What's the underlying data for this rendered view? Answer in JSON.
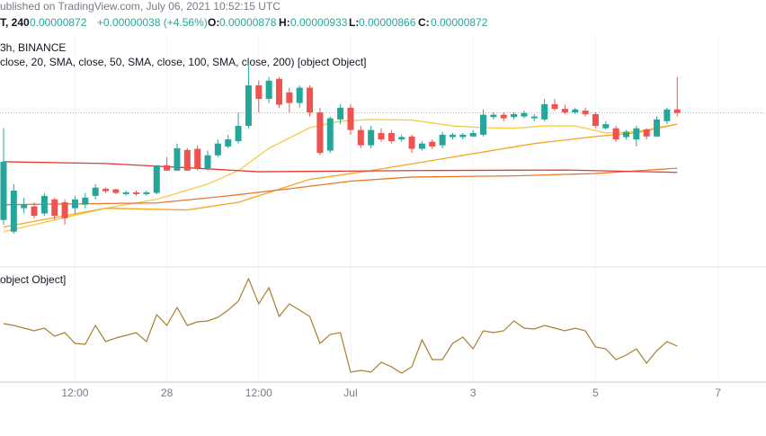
{
  "header": {
    "published": "ublished on TradingView.com, July 06, 2021 10:52:15 UTC",
    "symbol": "T, 240",
    "price": "0.00000872",
    "change": "+0.00000038 (+4.56%)",
    "ohlc": [
      {
        "label": "O:",
        "value": "0.00000878"
      },
      {
        "label": "H:",
        "value": "0.00000933"
      },
      {
        "label": "L:",
        "value": "0.00000866"
      },
      {
        "label": "C:",
        "value": "0.00000872"
      }
    ],
    "exchange": "3h, BINANCE"
  },
  "chart_data": [
    {
      "type": "candlestick",
      "indicator_label": "close, 20, SMA, close, 50, SMA, close, 100, SMA, close, 200) [object Object]",
      "up_color": "#26a69a",
      "down_color": "#ef5350",
      "x": [
        0,
        1,
        2,
        3,
        4,
        5,
        6,
        7,
        8,
        9,
        10,
        11,
        12,
        13,
        14,
        15,
        16,
        17,
        18,
        19,
        20,
        21,
        22,
        23,
        24,
        25,
        26,
        27,
        28,
        29,
        30,
        31,
        32,
        33,
        34,
        35,
        36,
        37,
        38,
        39,
        40,
        41,
        42,
        43,
        44,
        45,
        46,
        47,
        48,
        49,
        50,
        51,
        52,
        53,
        54,
        55,
        56,
        57,
        58,
        59,
        60,
        61,
        62,
        63,
        64,
        65,
        66
      ],
      "open": [
        6.9e-06,
        6.7e-06,
        7.1e-06,
        7.13e-06,
        7.01e-06,
        7.25e-06,
        7.2e-06,
        7.1e-06,
        7.16e-06,
        7.31e-06,
        7.43e-06,
        7.42e-06,
        7.34e-06,
        7.37e-06,
        7.34e-06,
        7.36e-06,
        7.83e-06,
        7.74e-06,
        8.09e-06,
        8.11e-06,
        7.78e-06,
        8e-06,
        8.15e-06,
        8.24e-06,
        8.5e-06,
        9.19e-06,
        8.96e-06,
        9.3e-06,
        9.07e-06,
        8.89e-06,
        9.15e-06,
        8.73e-06,
        8.08e-06,
        8.61e-06,
        8.81e-06,
        8.43e-06,
        8.17e-06,
        8.38e-06,
        8.38e-06,
        8.27e-06,
        8.32e-06,
        8.11e-06,
        8.23e-06,
        8.17e-06,
        8.31e-06,
        8.31e-06,
        8.32e-06,
        8.35e-06,
        8.65e-06,
        8.69e-06,
        8.65e-06,
        8.66e-06,
        8.63e-06,
        8.61e-06,
        8.87e-06,
        8.79e-06,
        8.73e-06,
        8.76e-06,
        8.7e-06,
        8.46e-06,
        8.46e-06,
        8.31e-06,
        8.27e-06,
        8.44e-06,
        8.32e-06,
        8.58e-06,
        8.78e-06
      ],
      "high": [
        8.46e-06,
        7.51e-06,
        7.28e-06,
        7.2e-06,
        7.36e-06,
        7.28e-06,
        7.25e-06,
        7.31e-06,
        7.36e-06,
        7.51e-06,
        7.45e-06,
        7.43e-06,
        7.4e-06,
        7.4e-06,
        7.4e-06,
        7.83e-06,
        7.97e-06,
        8.2e-06,
        8.12e-06,
        8.17e-06,
        8.08e-06,
        8.27e-06,
        8.35e-06,
        8.73e-06,
        9.57e-06,
        9.27e-06,
        9.33e-06,
        9.33e-06,
        9.15e-06,
        9.19e-06,
        9.19e-06,
        8.81e-06,
        8.66e-06,
        8.87e-06,
        8.87e-06,
        8.5e-06,
        8.5e-06,
        8.46e-06,
        8.43e-06,
        8.35e-06,
        8.35e-06,
        8.24e-06,
        8.27e-06,
        8.4e-06,
        8.38e-06,
        8.38e-06,
        8.43e-06,
        8.78e-06,
        8.73e-06,
        8.73e-06,
        8.73e-06,
        8.76e-06,
        8.7e-06,
        8.96e-06,
        8.96e-06,
        8.86e-06,
        8.81e-06,
        8.81e-06,
        8.73e-06,
        8.58e-06,
        8.5e-06,
        8.43e-06,
        8.5e-06,
        8.46e-06,
        8.66e-06,
        8.81e-06,
        9.33e-06
      ],
      "low": [
        6.82e-06,
        6.67e-06,
        7.01e-06,
        6.93e-06,
        6.97e-06,
        6.9e-06,
        6.82e-06,
        7.01e-06,
        7.1e-06,
        7.25e-06,
        7.36e-06,
        7.34e-06,
        7.31e-06,
        7.31e-06,
        7.31e-06,
        7.34e-06,
        7.74e-06,
        7.74e-06,
        7.74e-06,
        7.74e-06,
        7.74e-06,
        7.97e-06,
        8.12e-06,
        8.2e-06,
        8.46e-06,
        8.73e-06,
        8.89e-06,
        8.81e-06,
        8.73e-06,
        8.81e-06,
        8.66e-06,
        8e-06,
        8.04e-06,
        8.53e-06,
        8.35e-06,
        8.12e-06,
        8.12e-06,
        8.23e-06,
        8.2e-06,
        8.23e-06,
        8.04e-06,
        8.08e-06,
        8.11e-06,
        8.12e-06,
        8.27e-06,
        8.27e-06,
        8.31e-06,
        8.32e-06,
        8.61e-06,
        8.58e-06,
        8.61e-06,
        8.63e-06,
        8.58e-06,
        8.58e-06,
        8.76e-06,
        8.7e-06,
        8.7e-06,
        8.66e-06,
        8.46e-06,
        8.43e-06,
        8.23e-06,
        8.27e-06,
        8.15e-06,
        8.27e-06,
        8.31e-06,
        8.53e-06,
        8.66e-06
      ],
      "close": [
        7.89e-06,
        7.4e-06,
        7.16e-06,
        6.97e-06,
        7.31e-06,
        6.97e-06,
        6.93e-06,
        7.25e-06,
        7.28e-06,
        7.45e-06,
        7.39e-06,
        7.36e-06,
        7.37e-06,
        7.34e-06,
        7.37e-06,
        7.83e-06,
        7.74e-06,
        8.12e-06,
        7.74e-06,
        7.78e-06,
        8e-06,
        8.2e-06,
        8.27e-06,
        8.5e-06,
        9.19e-06,
        8.96e-06,
        9.27e-06,
        8.86e-06,
        8.89e-06,
        9.15e-06,
        8.73e-06,
        8.04e-06,
        8.63e-06,
        8.81e-06,
        8.43e-06,
        8.17e-06,
        8.43e-06,
        8.27e-06,
        8.24e-06,
        8.31e-06,
        8.11e-06,
        8.2e-06,
        8.15e-06,
        8.35e-06,
        8.35e-06,
        8.35e-06,
        8.38e-06,
        8.69e-06,
        8.69e-06,
        8.63e-06,
        8.7e-06,
        8.72e-06,
        8.66e-06,
        8.87e-06,
        8.79e-06,
        8.73e-06,
        8.78e-06,
        8.7e-06,
        8.5e-06,
        8.53e-06,
        8.27e-06,
        8.4e-06,
        8.46e-06,
        8.32e-06,
        8.61e-06,
        8.78e-06,
        8.72e-06
      ],
      "series": [
        {
          "color": "#f7c948",
          "x": [
            0,
            5,
            10,
            15,
            20,
            23,
            26,
            30,
            33,
            36,
            40,
            44,
            47,
            50,
            53,
            56,
            59,
            62,
            64,
            66
          ],
          "values": [
            6.7e-06,
            6.9e-06,
            7.1e-06,
            7.25e-06,
            7.51e-06,
            7.74e-06,
            8.12e-06,
            8.47e-06,
            8.58e-06,
            8.61e-06,
            8.6e-06,
            8.5e-06,
            8.47e-06,
            8.46e-06,
            8.5e-06,
            8.5e-06,
            8.38e-06,
            8.4e-06,
            8.47e-06,
            8.53e-06
          ]
        },
        {
          "color": "#f5a623",
          "x": [
            0,
            10,
            18,
            23,
            30,
            36,
            44,
            52,
            58,
            62,
            66
          ],
          "values": [
            6.78e-06,
            7.1e-06,
            7.07e-06,
            7.2e-06,
            7.59e-06,
            7.74e-06,
            7.97e-06,
            8.2e-06,
            8.32e-06,
            8.38e-06,
            8.53e-06
          ]
        },
        {
          "color": "#e8772e",
          "x": [
            0,
            15,
            22,
            28,
            34,
            40,
            50,
            58,
            66
          ],
          "values": [
            7.16e-06,
            7.19e-06,
            7.31e-06,
            7.43e-06,
            7.56e-06,
            7.63e-06,
            7.65e-06,
            7.69e-06,
            7.78e-06
          ]
        },
        {
          "color": "#e53935",
          "x": [
            0,
            10,
            20,
            25,
            40,
            55,
            66
          ],
          "values": [
            7.89e-06,
            7.86e-06,
            7.77e-06,
            7.72e-06,
            7.74e-06,
            7.75e-06,
            7.71e-06
          ]
        }
      ],
      "xlim": [
        -0.35,
        74.7
      ],
      "ylim": [
        6.1e-06,
        1.003e-05
      ],
      "xticks": [
        {
          "value": 7,
          "label": "12:00"
        },
        {
          "value": 16,
          "label": "28"
        },
        {
          "value": 25,
          "label": "12:00"
        },
        {
          "value": 34,
          "label": "Jul"
        },
        {
          "value": 46,
          "label": "3"
        },
        {
          "value": 58,
          "label": "5"
        },
        {
          "value": 70,
          "label": "7"
        }
      ]
    },
    {
      "type": "line",
      "title": "object Object]",
      "color": "#a8802e",
      "x": [
        0,
        1,
        2,
        3,
        4,
        5,
        6,
        7,
        8,
        9,
        10,
        11,
        12,
        13,
        14,
        15,
        16,
        17,
        18,
        19,
        20,
        21,
        22,
        23,
        24,
        25,
        26,
        27,
        28,
        29,
        30,
        31,
        32,
        33,
        34,
        35,
        36,
        37,
        38,
        39,
        40,
        41,
        42,
        43,
        44,
        45,
        46,
        47,
        48,
        49,
        50,
        51,
        52,
        53,
        54,
        55,
        56,
        57,
        58,
        59,
        60,
        61,
        62,
        63,
        64,
        65,
        66
      ],
      "values": [
        52,
        50.4,
        48,
        45.6,
        48,
        40.8,
        44,
        34.4,
        33.6,
        50.4,
        36,
        39.2,
        41.6,
        44,
        36,
        60,
        50.4,
        66.4,
        50.4,
        53.6,
        54.4,
        57.6,
        64,
        72,
        92,
        69.6,
        84,
        58.4,
        69.6,
        64,
        58.4,
        34.4,
        42.4,
        44,
        8.8,
        10.4,
        8.8,
        17.6,
        13.6,
        8,
        13.6,
        37.6,
        20,
        20,
        34.4,
        40,
        29.6,
        45.6,
        44,
        45.6,
        54.4,
        48,
        47.2,
        50.4,
        48,
        45.6,
        48,
        45.6,
        31.2,
        29.6,
        20,
        24,
        29.6,
        16.8,
        28,
        36,
        32
      ],
      "xlim": [
        -0.35,
        74.7
      ],
      "ylim": [
        0,
        100
      ]
    }
  ]
}
